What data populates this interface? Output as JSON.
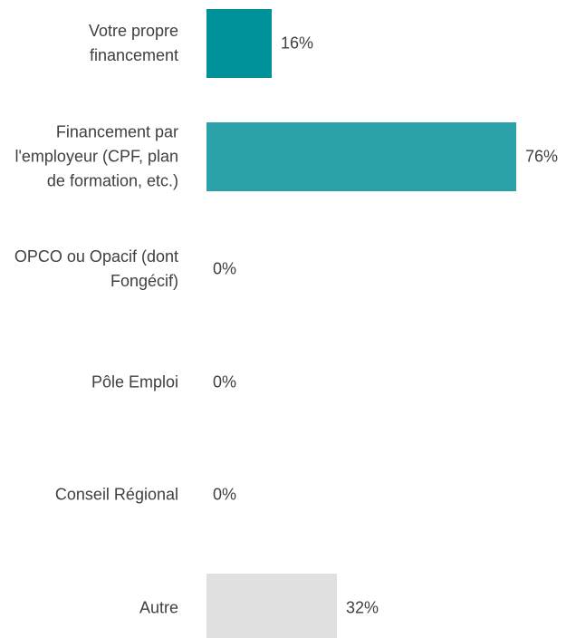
{
  "chart_data": {
    "type": "bar",
    "orientation": "horizontal",
    "categories": [
      "Votre propre financement",
      "Financement par l'employeur (CPF, plan de formation, etc.)",
      "OPCO ou Opacif (dont Fongécif)",
      "Pôle Emploi",
      "Conseil Régional",
      "Autre"
    ],
    "values": [
      16,
      76,
      0,
      0,
      0,
      32
    ],
    "value_labels": [
      "16%",
      "76%",
      "0%",
      "0%",
      "0%",
      "32%"
    ],
    "colors": [
      "#00929a",
      "#2ba1a9",
      "#2ba1a9",
      "#2ba1a9",
      "#2ba1a9",
      "#e0e0e0"
    ]
  }
}
